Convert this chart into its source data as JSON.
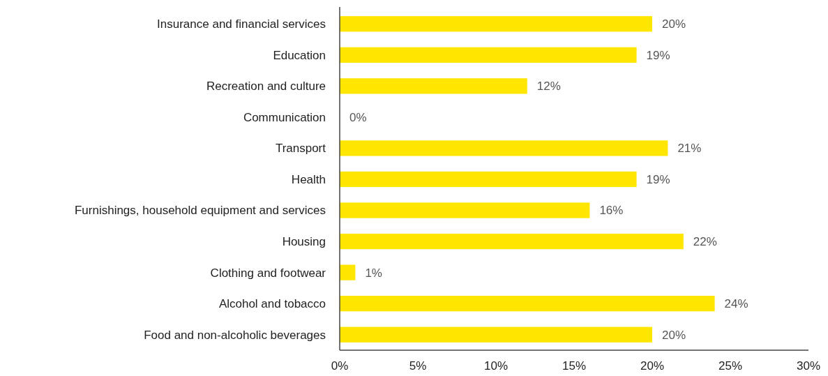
{
  "chart_data": {
    "type": "bar",
    "orientation": "horizontal",
    "categories": [
      "Insurance and financial services",
      "Education",
      "Recreation and culture",
      "Communication",
      "Transport",
      "Health",
      "Furnishings, household equipment and services",
      "Housing",
      "Clothing and footwear",
      "Alcohol and tobacco",
      "Food and non-alcoholic beverages"
    ],
    "values": [
      20,
      19,
      12,
      0,
      21,
      19,
      16,
      22,
      1,
      24,
      20
    ],
    "color": "#ffe600",
    "xlim": [
      0,
      30
    ],
    "xticks": [
      {
        "value": 0,
        "label": "0%"
      },
      {
        "value": 5,
        "label": "5%"
      },
      {
        "value": 10,
        "label": "10%"
      },
      {
        "value": 15,
        "label": "15%"
      },
      {
        "value": 20,
        "label": "20%"
      },
      {
        "value": 25,
        "label": "25%"
      },
      {
        "value": 30,
        "label": "30%"
      }
    ],
    "value_labels": [
      "20%",
      "19%",
      "12%",
      "0%",
      "21%",
      "19%",
      "16%",
      "22%",
      "1%",
      "24%",
      "20%"
    ],
    "grid": false
  }
}
